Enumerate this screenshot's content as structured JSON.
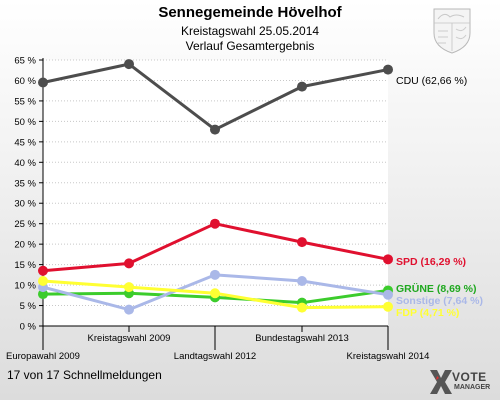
{
  "header": {
    "title": "Sennegemeinde Hövelhof",
    "subtitle": "Kreistagswahl 25.05.2014",
    "subtitle2": "Verlauf Gesamtergebnis"
  },
  "footer": {
    "text": "17 von 17 Schnellmeldungen"
  },
  "logo": {
    "brand": "VOTE",
    "sub": "MANAGER",
    "icon": "x-mark-icon"
  },
  "crest": {
    "icon": "coat-of-arms-icon"
  },
  "chart_data": {
    "type": "line",
    "title": "",
    "xlabel": "",
    "ylabel": "",
    "ylim": [
      0,
      65
    ],
    "yticks": [
      "0 %",
      "5 %",
      "10 %",
      "15 %",
      "20 %",
      "25 %",
      "30 %",
      "35 %",
      "40 %",
      "45 %",
      "50 %",
      "55 %",
      "60 %",
      "65 %"
    ],
    "grid": true,
    "categories": [
      "Europawahl 2009",
      "Kreistagswahl 2009",
      "Landtagswahl 2012",
      "Bundestagswahl 2013",
      "Kreistagswahl 2014"
    ],
    "series": [
      {
        "name": "CDU",
        "label": "CDU (62,66 %)",
        "color": "#4d4d4d",
        "labelColor": "#000000",
        "values": [
          59.5,
          64,
          48,
          58.5,
          62.66
        ]
      },
      {
        "name": "SPD",
        "label": "SPD (16,29 %)",
        "color": "#e0102f",
        "labelColor": "#e0102f",
        "values": [
          13.5,
          15.3,
          25,
          20.5,
          16.29
        ]
      },
      {
        "name": "GRÜNE",
        "label": "GRÜNE (8,69 %)",
        "color": "#3ccc2c",
        "labelColor": "#1fa81f",
        "values": [
          7.8,
          8.0,
          7.0,
          5.7,
          8.69
        ]
      },
      {
        "name": "Sonstige",
        "label": "Sonstige (7,64 %)",
        "color": "#aab8e8",
        "labelColor": "#aab8e8",
        "values": [
          9.5,
          4.0,
          12.5,
          11.0,
          7.64
        ]
      },
      {
        "name": "FDP",
        "label": "FDP (4,71 %)",
        "color": "#ffff33",
        "labelColor": "#ffff33",
        "values": [
          11.0,
          9.5,
          8.0,
          4.5,
          4.71
        ]
      }
    ]
  }
}
